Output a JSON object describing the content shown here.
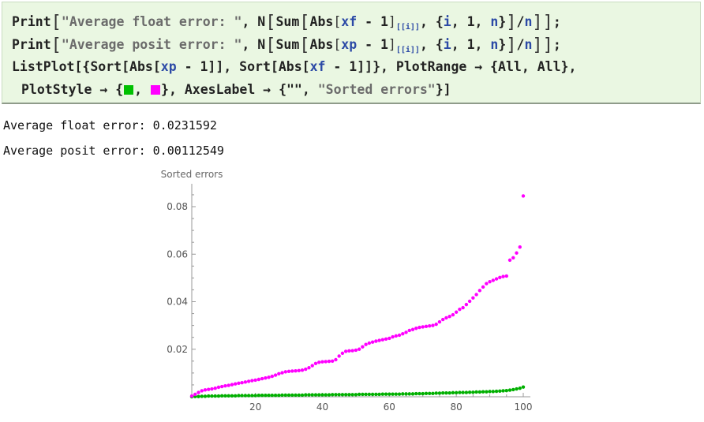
{
  "input": {
    "line1": {
      "f1": "Print",
      "s1": "\"Average float error: \"",
      "c1": ", N",
      "f2": "Sum",
      "f3": "Abs",
      "v1": "xf",
      "m1": " - 1",
      "sub1": "[[i]]",
      "c2": ", {",
      "i1": "i",
      "c3": ", 1, ",
      "n1": "n",
      "c4": "}",
      "c5": "/",
      "n2": "n",
      "end": ";"
    },
    "line2": {
      "f1": "Print",
      "s1": "\"Average posit error: \"",
      "c1": ", N",
      "f2": "Sum",
      "f3": "Abs",
      "v1": "xp",
      "m1": " - 1",
      "sub1": "[[i]]",
      "c2": ", {",
      "i1": "i",
      "c3": ", 1, ",
      "n1": "n",
      "c4": "}",
      "c5": "/",
      "n2": "n",
      "end": ";"
    },
    "line3": {
      "f1": "ListPlot",
      "c1": "[{",
      "f2": "Sort",
      "c2": "[",
      "f3": "Abs",
      "c3": "[",
      "v1": "xp",
      "m1": " - 1",
      "c4": "]], ",
      "f4": "Sort",
      "c5": "[",
      "f5": "Abs",
      "c6": "[",
      "v2": "xf",
      "m2": " - 1",
      "c7": "]]}, ",
      "o1": "PlotRange",
      "arrow": " → ",
      "c8": "{All, All},"
    },
    "line4": {
      "o1": "PlotStyle",
      "arrow": " → ",
      "c1": "{",
      "c2": ", ",
      "c3": "}, ",
      "o2": "AxesLabel",
      "arrow2": " → ",
      "c4": "{\"\", ",
      "s1": "\"Sorted errors\"",
      "c5": "}]"
    },
    "colors": {
      "green": "#00c000",
      "magenta": "#ff00ff"
    }
  },
  "output": {
    "float_line": "Average float error: 0.0231592",
    "posit_line": "Average posit error: 0.00112549"
  },
  "chart_data": {
    "type": "scatter",
    "ylabel": "Sorted errors",
    "xlim": [
      0,
      100
    ],
    "ylim": [
      0,
      0.085
    ],
    "xticks": [
      20,
      40,
      60,
      80,
      100
    ],
    "yticks": [
      0.02,
      0.04,
      0.06,
      0.08
    ],
    "xtick_labels": [
      "20",
      "40",
      "60",
      "80",
      "100"
    ],
    "ytick_labels": [
      "0.02",
      "0.04",
      "0.06",
      "0.08"
    ],
    "series": [
      {
        "color": "#00b000",
        "values": [
          0.0,
          0.0001,
          0.0001,
          0.0002,
          0.0002,
          0.0003,
          0.0003,
          0.0003,
          0.0003,
          0.0004,
          0.0004,
          0.0004,
          0.0004,
          0.0004,
          0.0005,
          0.0005,
          0.0005,
          0.0005,
          0.0005,
          0.0005,
          0.0006,
          0.0006,
          0.0006,
          0.0006,
          0.0006,
          0.0006,
          0.0006,
          0.0007,
          0.0007,
          0.0007,
          0.0007,
          0.0007,
          0.0007,
          0.0007,
          0.0008,
          0.0008,
          0.0008,
          0.0008,
          0.0008,
          0.0008,
          0.0008,
          0.0008,
          0.0009,
          0.0009,
          0.0009,
          0.0009,
          0.0009,
          0.0009,
          0.0009,
          0.0009,
          0.001,
          0.001,
          0.001,
          0.001,
          0.001,
          0.001,
          0.001,
          0.0011,
          0.0011,
          0.0011,
          0.0011,
          0.0011,
          0.0011,
          0.0012,
          0.0012,
          0.0012,
          0.0012,
          0.0013,
          0.0013,
          0.0013,
          0.0014,
          0.0014,
          0.0014,
          0.0015,
          0.0015,
          0.0016,
          0.0016,
          0.0016,
          0.0017,
          0.0017,
          0.0018,
          0.0018,
          0.0018,
          0.0019,
          0.0019,
          0.002,
          0.002,
          0.0021,
          0.0021,
          0.0022,
          0.0022,
          0.0023,
          0.0024,
          0.0025,
          0.0026,
          0.0028,
          0.003,
          0.0033,
          0.0036,
          0.0041
        ]
      },
      {
        "color": "#ff00ff",
        "values": [
          0.0003,
          0.001,
          0.0018,
          0.0025,
          0.0029,
          0.0031,
          0.0033,
          0.0036,
          0.004,
          0.0043,
          0.0046,
          0.0048,
          0.0051,
          0.0054,
          0.0057,
          0.0059,
          0.0062,
          0.0065,
          0.0068,
          0.007,
          0.0073,
          0.0076,
          0.0079,
          0.0082,
          0.0086,
          0.0091,
          0.0097,
          0.0101,
          0.0105,
          0.0107,
          0.0108,
          0.0109,
          0.011,
          0.0112,
          0.0116,
          0.0122,
          0.0131,
          0.014,
          0.0145,
          0.0147,
          0.0148,
          0.0149,
          0.015,
          0.0156,
          0.0171,
          0.0183,
          0.0191,
          0.0193,
          0.0194,
          0.0196,
          0.02,
          0.021,
          0.022,
          0.0226,
          0.023,
          0.0234,
          0.0237,
          0.024,
          0.0243,
          0.0246,
          0.0252,
          0.0256,
          0.0259,
          0.0265,
          0.0271,
          0.0279,
          0.0283,
          0.0288,
          0.0292,
          0.0294,
          0.0296,
          0.0298,
          0.03,
          0.0305,
          0.0315,
          0.0325,
          0.0332,
          0.0338,
          0.0345,
          0.0356,
          0.0368,
          0.0375,
          0.0388,
          0.0402,
          0.0416,
          0.043,
          0.0447,
          0.0462,
          0.0476,
          0.0484,
          0.049,
          0.0496,
          0.0502,
          0.0506,
          0.0508,
          0.0575,
          0.0585,
          0.0605,
          0.063,
          0.0845
        ]
      }
    ]
  }
}
